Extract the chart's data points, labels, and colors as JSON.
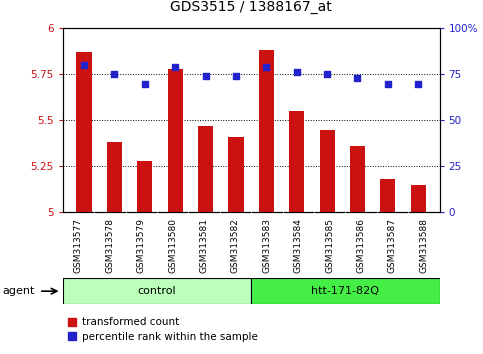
{
  "title": "GDS3515 / 1388167_at",
  "samples": [
    "GSM313577",
    "GSM313578",
    "GSM313579",
    "GSM313580",
    "GSM313581",
    "GSM313582",
    "GSM313583",
    "GSM313584",
    "GSM313585",
    "GSM313586",
    "GSM313587",
    "GSM313588"
  ],
  "transformed_count": [
    5.87,
    5.38,
    5.28,
    5.78,
    5.47,
    5.41,
    5.88,
    5.55,
    5.45,
    5.36,
    5.18,
    5.15
  ],
  "percentile_rank": [
    80,
    75,
    70,
    79,
    74,
    74,
    79,
    76,
    75,
    73,
    70,
    70
  ],
  "ylim_left": [
    5.0,
    6.0
  ],
  "ylim_right": [
    0,
    100
  ],
  "yticks_left": [
    5.0,
    5.25,
    5.5,
    5.75,
    6.0
  ],
  "ytick_labels_left": [
    "5",
    "5.25",
    "5.5",
    "5.75",
    "6"
  ],
  "yticks_right": [
    0,
    25,
    50,
    75,
    100
  ],
  "ytick_labels_right": [
    "0",
    "25",
    "50",
    "75",
    "100%"
  ],
  "bar_color": "#cc1111",
  "dot_color": "#2222cc",
  "bar_width": 0.5,
  "dot_size": 18,
  "control_color": "#bbffbb",
  "htt_color": "#44ee44",
  "sample_bg_color": "#cccccc",
  "agent_label": "agent",
  "legend_bar_label": "transformed count",
  "legend_dot_label": "percentile rank within the sample",
  "bg_color": "#ffffff",
  "grid_color": "#000000",
  "tick_label_color_left": "#cc1111",
  "tick_label_color_right": "#2222cc",
  "title_fontsize": 10,
  "tick_fontsize": 7.5,
  "group_fontsize": 8,
  "legend_fontsize": 7.5
}
